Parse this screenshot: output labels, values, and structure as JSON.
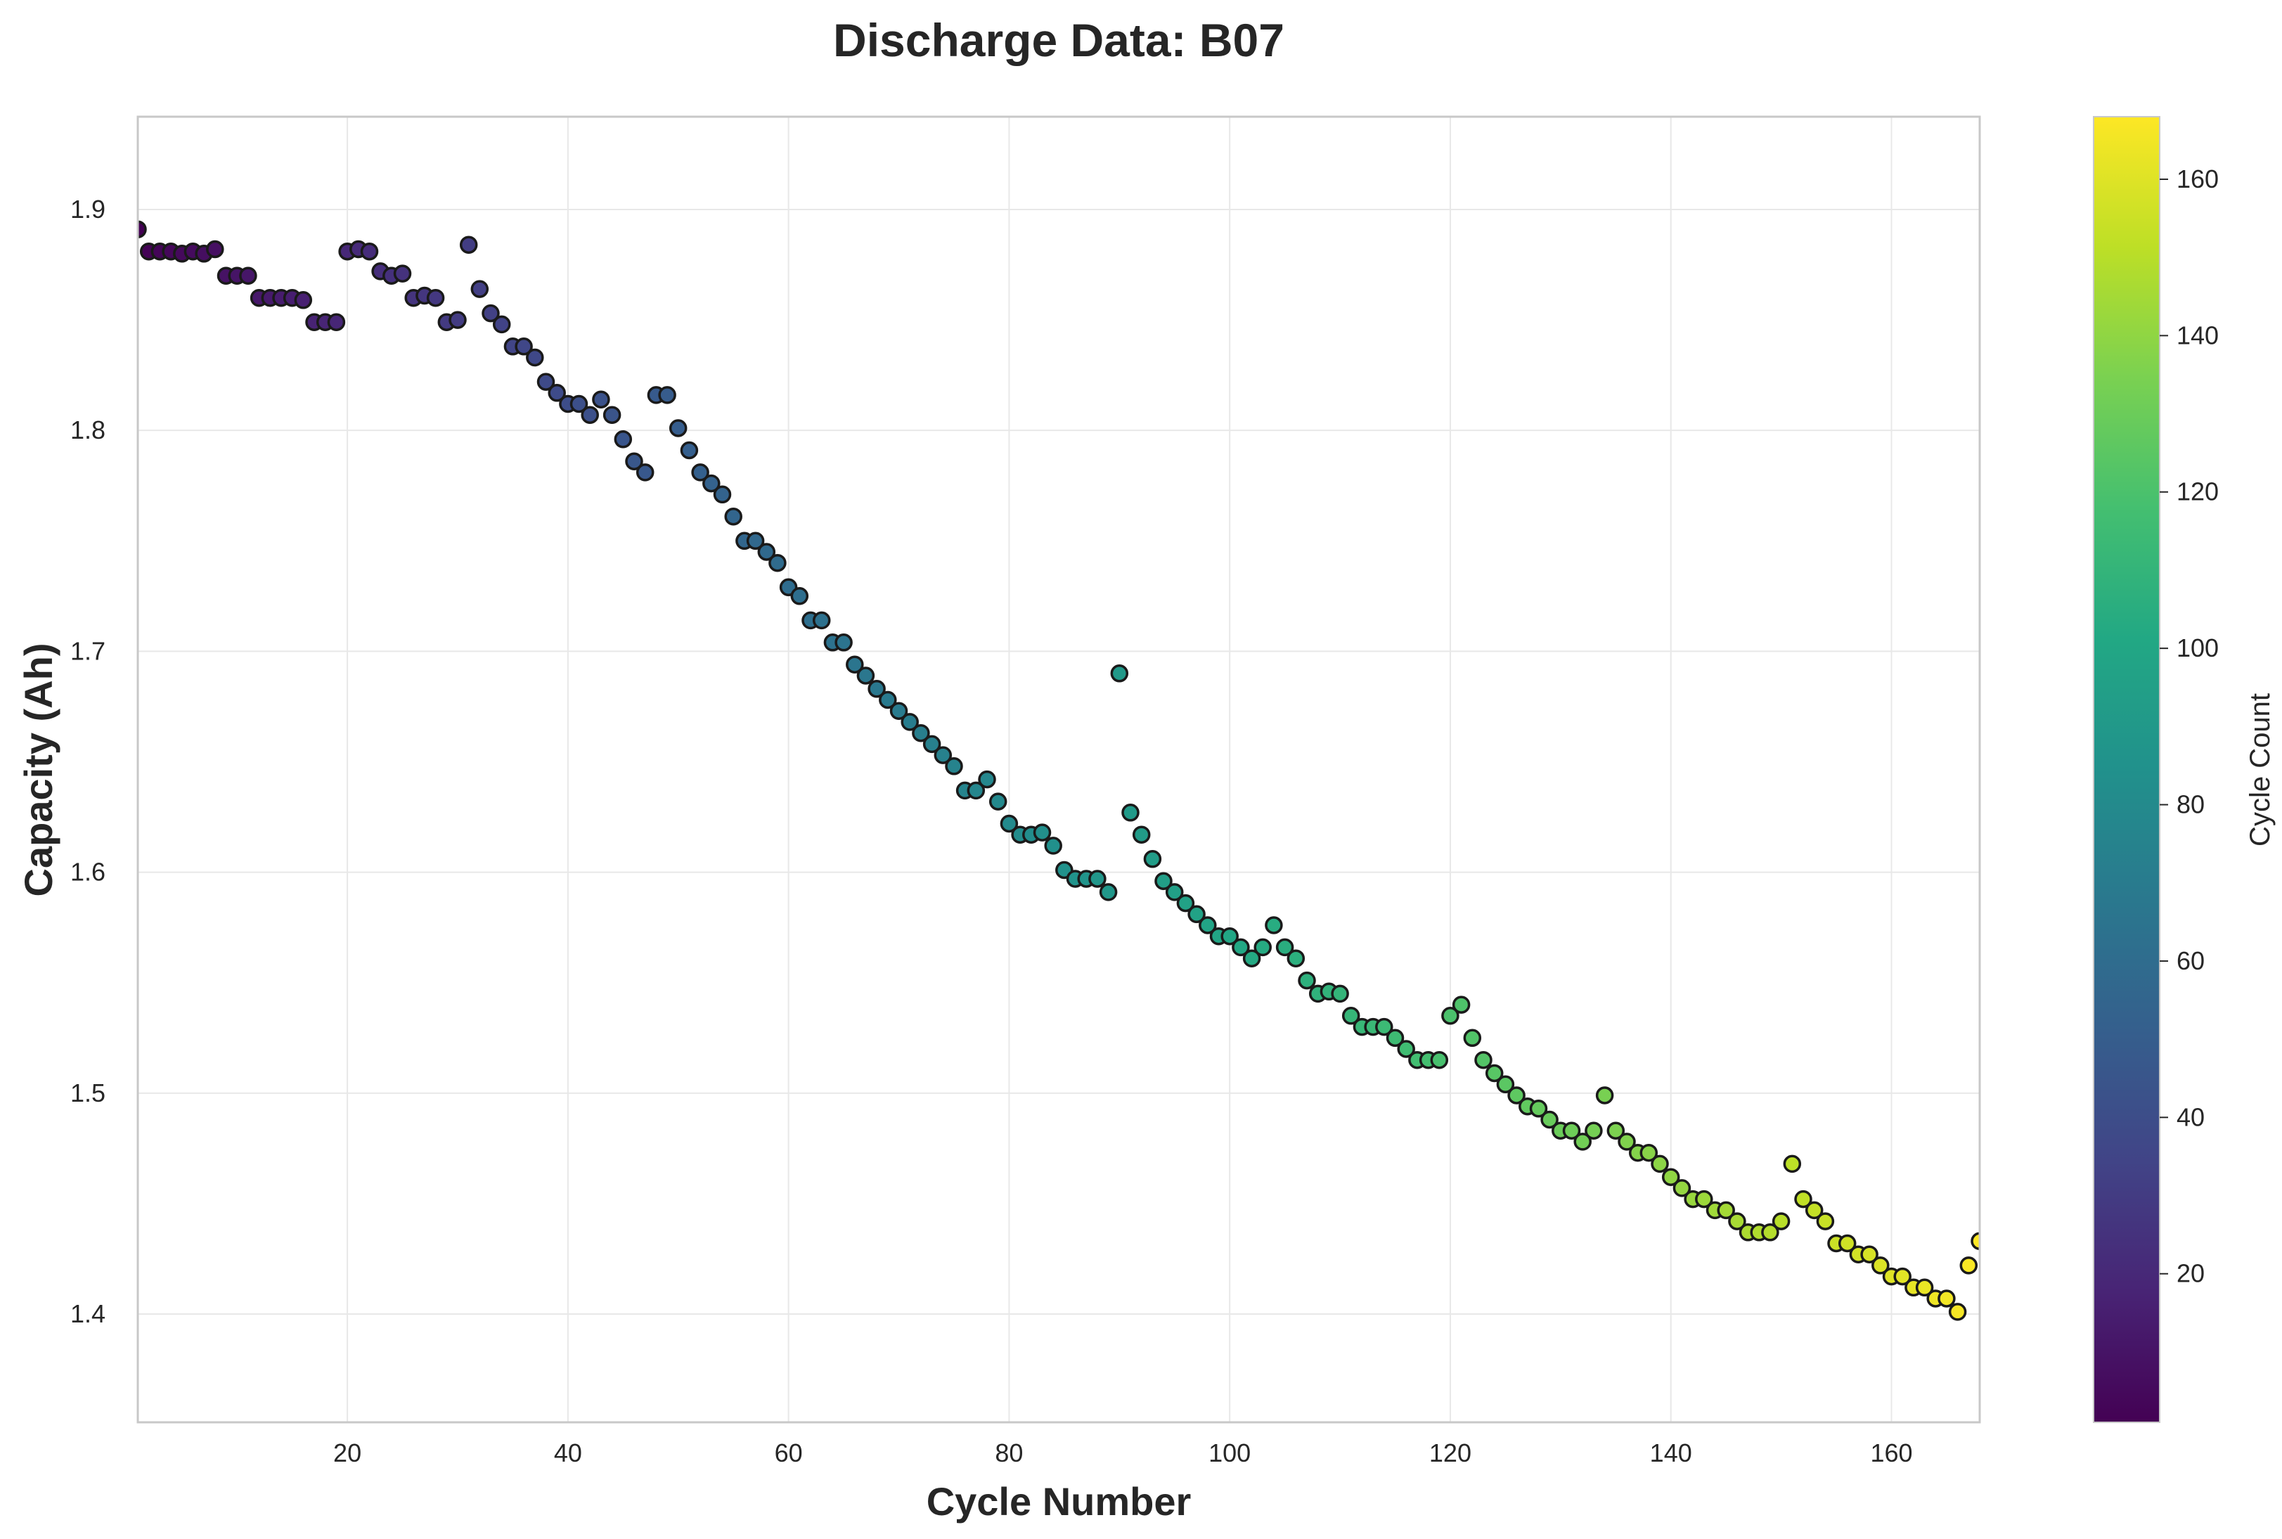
{
  "chart_data": {
    "type": "scatter",
    "title": "Discharge Data: B07",
    "xlabel": "Cycle Number",
    "ylabel": "Capacity (Ah)",
    "xlim": [
      1,
      168
    ],
    "ylim": [
      1.351,
      1.942
    ],
    "xticks": [
      20,
      40,
      60,
      80,
      100,
      120,
      140,
      160
    ],
    "yticks": [
      1.4,
      1.5,
      1.6,
      1.7,
      1.8,
      1.9
    ],
    "grid": true,
    "colorbar": {
      "label": "Cycle Count",
      "colormap": "viridis",
      "range": [
        1,
        168
      ],
      "ticks": [
        20,
        40,
        60,
        80,
        100,
        120,
        140,
        160
      ]
    },
    "x": [
      1,
      2,
      3,
      4,
      5,
      6,
      7,
      8,
      9,
      10,
      11,
      12,
      13,
      14,
      15,
      16,
      17,
      18,
      19,
      20,
      21,
      22,
      23,
      24,
      25,
      26,
      27,
      28,
      29,
      30,
      31,
      32,
      33,
      34,
      35,
      36,
      37,
      38,
      39,
      40,
      41,
      42,
      43,
      44,
      45,
      46,
      47,
      48,
      49,
      50,
      51,
      52,
      53,
      54,
      55,
      56,
      57,
      58,
      59,
      60,
      61,
      62,
      63,
      64,
      65,
      66,
      67,
      68,
      69,
      70,
      71,
      72,
      73,
      74,
      75,
      76,
      77,
      78,
      79,
      80,
      81,
      82,
      83,
      84,
      85,
      86,
      87,
      88,
      89,
      90,
      91,
      92,
      93,
      94,
      95,
      96,
      97,
      98,
      99,
      100,
      101,
      102,
      103,
      104,
      105,
      106,
      107,
      108,
      109,
      110,
      111,
      112,
      113,
      114,
      115,
      116,
      117,
      118,
      119,
      120,
      121,
      122,
      123,
      124,
      125,
      126,
      127,
      128,
      129,
      130,
      131,
      132,
      133,
      134,
      135,
      136,
      137,
      138,
      139,
      140,
      141,
      142,
      143,
      144,
      145,
      146,
      147,
      148,
      149,
      150,
      151,
      152,
      153,
      154,
      155,
      156,
      157,
      158,
      159,
      160,
      161,
      162,
      163,
      164,
      165,
      166,
      167,
      168
    ],
    "y": [
      1.891,
      1.881,
      1.881,
      1.881,
      1.88,
      1.881,
      1.88,
      1.882,
      1.87,
      1.87,
      1.87,
      1.86,
      1.86,
      1.86,
      1.86,
      1.859,
      1.849,
      1.849,
      1.849,
      1.881,
      1.882,
      1.881,
      1.872,
      1.87,
      1.871,
      1.86,
      1.861,
      1.86,
      1.849,
      1.85,
      1.884,
      1.864,
      1.853,
      1.848,
      1.838,
      1.838,
      1.833,
      1.822,
      1.817,
      1.812,
      1.812,
      1.807,
      1.814,
      1.807,
      1.796,
      1.786,
      1.781,
      1.816,
      1.816,
      1.801,
      1.791,
      1.781,
      1.776,
      1.771,
      1.761,
      1.75,
      1.75,
      1.745,
      1.74,
      1.729,
      1.725,
      1.714,
      1.714,
      1.704,
      1.704,
      1.694,
      1.689,
      1.683,
      1.678,
      1.673,
      1.668,
      1.663,
      1.658,
      1.653,
      1.648,
      1.637,
      1.637,
      1.642,
      1.632,
      1.622,
      1.617,
      1.617,
      1.618,
      1.612,
      1.601,
      1.597,
      1.597,
      1.597,
      1.591,
      1.69,
      1.627,
      1.617,
      1.606,
      1.596,
      1.591,
      1.586,
      1.581,
      1.576,
      1.571,
      1.571,
      1.566,
      1.561,
      1.566,
      1.576,
      1.566,
      1.561,
      1.551,
      1.545,
      1.546,
      1.545,
      1.535,
      1.53,
      1.53,
      1.53,
      1.525,
      1.52,
      1.515,
      1.515,
      1.515,
      1.535,
      1.54,
      1.525,
      1.515,
      1.509,
      1.504,
      1.499,
      1.494,
      1.493,
      1.488,
      1.483,
      1.483,
      1.478,
      1.483,
      1.499,
      1.483,
      1.478,
      1.473,
      1.473,
      1.468,
      1.462,
      1.457,
      1.452,
      1.452,
      1.447,
      1.447,
      1.442,
      1.437,
      1.437,
      1.437,
      1.442,
      1.468,
      1.452,
      1.447,
      1.442,
      1.432,
      1.432,
      1.427,
      1.427,
      1.422,
      1.417,
      1.417,
      1.412,
      1.412,
      1.407,
      1.407,
      1.401,
      1.422,
      1.433
    ]
  }
}
